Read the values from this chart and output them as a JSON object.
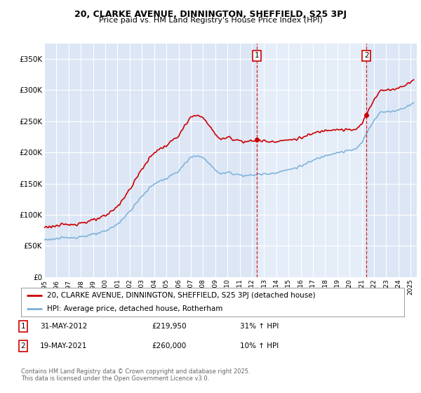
{
  "title_line1": "20, CLARKE AVENUE, DINNINGTON, SHEFFIELD, S25 3PJ",
  "title_line2": "Price paid vs. HM Land Registry's House Price Index (HPI)",
  "bg_color": "#dce6f5",
  "ylabel_ticks": [
    "£0",
    "£50K",
    "£100K",
    "£150K",
    "£200K",
    "£250K",
    "£300K",
    "£350K"
  ],
  "ytick_vals": [
    0,
    50000,
    100000,
    150000,
    200000,
    250000,
    300000,
    350000
  ],
  "ylim": [
    0,
    375000
  ],
  "xlim_start": 1995.0,
  "xlim_end": 2025.5,
  "xticks": [
    1995,
    1996,
    1997,
    1998,
    1999,
    2000,
    2001,
    2002,
    2003,
    2004,
    2005,
    2006,
    2007,
    2008,
    2009,
    2010,
    2011,
    2012,
    2013,
    2014,
    2015,
    2016,
    2017,
    2018,
    2019,
    2020,
    2021,
    2022,
    2023,
    2024,
    2025
  ],
  "legend_line1": "20, CLARKE AVENUE, DINNINGTON, SHEFFIELD, S25 3PJ (detached house)",
  "legend_line2": "HPI: Average price, detached house, Rotherham",
  "sale1_date": "31-MAY-2012",
  "sale1_price": "£219,950",
  "sale1_hpi": "31% ↑ HPI",
  "sale1_year": 2012.42,
  "sale2_date": "19-MAY-2021",
  "sale2_price": "£260,000",
  "sale2_hpi": "10% ↑ HPI",
  "sale2_year": 2021.38,
  "copyright": "Contains HM Land Registry data © Crown copyright and database right 2025.\nThis data is licensed under the Open Government Licence v3.0.",
  "red_color": "#cc0000",
  "blue_color": "#7ab0d8",
  "marker1_price": 219950,
  "marker2_price": 260000,
  "highlight_bg": "#e8f0fa"
}
